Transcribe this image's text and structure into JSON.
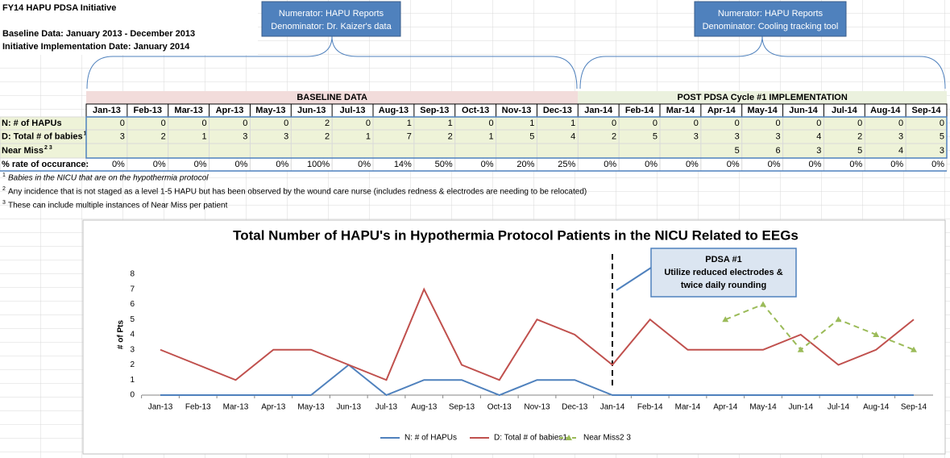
{
  "header": {
    "title": "FY14 HAPU PDSA Initiative",
    "baseline": "Baseline Data:  January 2013 - December 2013",
    "implementation": "Initiative Implementation Date:  January 2014"
  },
  "callouts": [
    {
      "lines": [
        "Numerator: HAPU Reports",
        "Denominator: Dr. Kaizer's data"
      ]
    },
    {
      "lines": [
        "Numerator:  HAPU Reports",
        "Denominator:  Cooling tracking tool"
      ]
    }
  ],
  "table": {
    "sections": [
      "BASELINE DATA",
      "POST PDSA Cycle #1 IMPLEMENTATION"
    ],
    "columns": [
      "Jan-13",
      "Feb-13",
      "Mar-13",
      "Apr-13",
      "May-13",
      "Jun-13",
      "Jul-13",
      "Aug-13",
      "Sep-13",
      "Oct-13",
      "Nov-13",
      "Dec-13",
      "Jan-14",
      "Feb-14",
      "Mar-14",
      "Apr-14",
      "May-14",
      "Jun-14",
      "Jul-14",
      "Aug-14",
      "Sep-14"
    ],
    "rows": [
      {
        "label": "N:  # of HAPUs",
        "cells": [
          0,
          0,
          0,
          0,
          0,
          2,
          0,
          1,
          1,
          0,
          1,
          1,
          0,
          0,
          0,
          0,
          0,
          0,
          0,
          0,
          0
        ]
      },
      {
        "label": "D:  Total # of babies",
        "sup": "1",
        "cells": [
          3,
          2,
          1,
          3,
          3,
          2,
          1,
          7,
          2,
          1,
          5,
          4,
          2,
          5,
          3,
          3,
          3,
          4,
          2,
          3,
          5
        ]
      },
      {
        "label": "Near Miss",
        "sup": "2 3",
        "cells": [
          null,
          null,
          null,
          null,
          null,
          null,
          null,
          null,
          null,
          null,
          null,
          null,
          null,
          null,
          null,
          5,
          6,
          3,
          5,
          4,
          3
        ]
      },
      {
        "label": "% rate of occurance:",
        "cells": [
          "0%",
          "0%",
          "0%",
          "0%",
          "0%",
          "100%",
          "0%",
          "14%",
          "50%",
          "0%",
          "20%",
          "25%",
          "0%",
          "0%",
          "0%",
          "0%",
          "0%",
          "0%",
          "0%",
          "0%",
          "0%"
        ]
      }
    ]
  },
  "footnotes": [
    {
      "mark": "1",
      "text": "Babies in the NICU that are on the hypothermia protocol"
    },
    {
      "mark": "2",
      "text": "Any incidence that is not staged as a level 1-5 HAPU but has been observed by the wound care nurse (includes redness & electrodes are needing to be relocated)"
    },
    {
      "mark": "3",
      "text": "These can include multiple instances of Near Miss per patient"
    }
  ],
  "chart_data": {
    "type": "line",
    "title": "Total Number of HAPU's in Hypothermia Protocol Patients in the NICU Related to EEGs",
    "y_label": "# of Pts",
    "categories": [
      "Jan-13",
      "Feb-13",
      "Mar-13",
      "Apr-13",
      "May-13",
      "Jun-13",
      "Jul-13",
      "Aug-13",
      "Sep-13",
      "Oct-13",
      "Nov-13",
      "Dec-13",
      "Jan-14",
      "Feb-14",
      "Mar-14",
      "Apr-14",
      "May-14",
      "Jun-14",
      "Jul-14",
      "Aug-14",
      "Sep-14"
    ],
    "series": [
      {
        "name": "N:  # of HAPUs",
        "color": "#4f81bd",
        "values": [
          0,
          0,
          0,
          0,
          0,
          2,
          0,
          1,
          1,
          0,
          1,
          1,
          0,
          0,
          0,
          0,
          0,
          0,
          0,
          0,
          0
        ]
      },
      {
        "name": "D:  Total # of babies1",
        "color": "#c0504d",
        "values": [
          3,
          2,
          1,
          3,
          3,
          2,
          1,
          7,
          2,
          1,
          5,
          4,
          2,
          5,
          3,
          3,
          3,
          4,
          2,
          3,
          5
        ]
      },
      {
        "name": "Near Miss2 3",
        "color": "#9bbb59",
        "dashed": true,
        "marker": "triangle",
        "values": [
          null,
          null,
          null,
          null,
          null,
          null,
          null,
          null,
          null,
          null,
          null,
          null,
          null,
          null,
          null,
          5,
          6,
          3,
          5,
          4,
          3
        ]
      }
    ],
    "ylim": [
      0,
      8
    ],
    "yticks": [
      0,
      1,
      2,
      3,
      4,
      5,
      6,
      7,
      8
    ],
    "legend": "bottom",
    "annotation": {
      "lines": [
        "PDSA  #1",
        "Utilize reduced electrodes &",
        "twice daily rounding"
      ]
    }
  }
}
